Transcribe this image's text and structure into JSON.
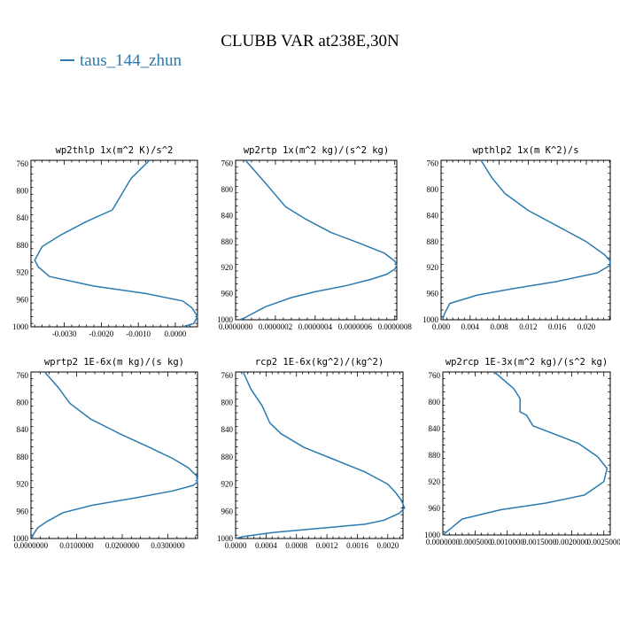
{
  "title": "CLUBB VAR at238E,30N",
  "legend": {
    "label": "taus_144_zhun",
    "color": "#2a7ab0"
  },
  "chart_data": [
    {
      "type": "line",
      "title": "wp2thlp  1x(m^2 K)/s^2",
      "xlim": [
        -0.0039,
        0.0006
      ],
      "ylim": [
        1000,
        755
      ],
      "xticks": [
        -0.003,
        -0.002,
        -0.001,
        0.0
      ],
      "xtick_labels": [
        "-0.0030",
        "-0.0020",
        "-0.0010",
        "0.0000"
      ],
      "yticks": [
        760,
        800,
        840,
        880,
        920,
        960,
        1000
      ],
      "series": [
        {
          "color": "#2a7ab0",
          "x": [
            -0.0007,
            -0.0012,
            -0.0017,
            -0.0024,
            -0.0031,
            -0.0036,
            -0.0038,
            -0.0037,
            -0.0034,
            -0.0022,
            -0.0008,
            0.0002,
            0.00045,
            0.0006,
            0.0005,
            0.0002
          ],
          "y": [
            755,
            782,
            828,
            845,
            865,
            882,
            902,
            912,
            926,
            940,
            951,
            962,
            972,
            985,
            995,
            1000
          ]
        }
      ]
    },
    {
      "type": "line",
      "title": "wp2rtp  1x(m^2 kg)/(s^2 kg)",
      "xlim": [
        0.0,
        8.1e-07
      ],
      "ylim": [
        1000,
        755
      ],
      "xticks": [
        0.0,
        2e-07,
        4e-07,
        6e-07,
        8e-07
      ],
      "xtick_labels": [
        "0.0000000",
        "0.0000002",
        "0.0000004",
        "0.0000006",
        "0.0000008"
      ],
      "yticks": [
        760,
        800,
        840,
        880,
        920,
        960,
        1000
      ],
      "series": [
        {
          "color": "#2a7ab0",
          "x": [
            5e-08,
            1.5e-07,
            2.5e-07,
            3.5e-07,
            4.8e-07,
            6.2e-07,
            7.5e-07,
            8e-07,
            8.1e-07,
            8e-07,
            7.6e-07,
            6.8e-07,
            5.5e-07,
            4e-07,
            2.8e-07,
            1.5e-07,
            7e-08,
            4e-08,
            2e-08
          ],
          "y": [
            755,
            790,
            826,
            845,
            866,
            882,
            898,
            910,
            916,
            922,
            930,
            938,
            948,
            957,
            966,
            980,
            993,
            998,
            1000
          ]
        }
      ]
    },
    {
      "type": "line",
      "title": "wpthlp2  1x(m K^2)/s",
      "xlim": [
        0.0,
        0.0233
      ],
      "ylim": [
        1000,
        755
      ],
      "xticks": [
        0.0,
        0.004,
        0.008,
        0.012,
        0.016,
        0.02
      ],
      "xtick_labels": [
        "0.000",
        "0.004",
        "0.008",
        "0.012",
        "0.016",
        "0.020"
      ],
      "yticks": [
        760,
        800,
        840,
        880,
        920,
        960,
        1000
      ],
      "series": [
        {
          "color": "#2a7ab0",
          "x": [
            0.0055,
            0.007,
            0.0088,
            0.012,
            0.016,
            0.02,
            0.0225,
            0.0233,
            0.0232,
            0.0215,
            0.016,
            0.01,
            0.005,
            0.0012,
            0.0005,
            0.0002
          ],
          "y": [
            755,
            782,
            806,
            832,
            856,
            880,
            900,
            910,
            917,
            928,
            941,
            952,
            962,
            975,
            990,
            1000
          ]
        }
      ]
    },
    {
      "type": "line",
      "title": "wprtp2  1E-6x(m kg)/(s kg)",
      "xlim": [
        0.0,
        0.0365
      ],
      "ylim": [
        1000,
        755
      ],
      "xticks": [
        0.0,
        0.01,
        0.02,
        0.03
      ],
      "xtick_labels": [
        "0.0000000",
        "0.0100000",
        "0.0200000",
        "0.0300000"
      ],
      "yticks": [
        760,
        800,
        840,
        880,
        920,
        960,
        1000
      ],
      "series": [
        {
          "color": "#2a7ab0",
          "x": [
            0.003,
            0.006,
            0.0085,
            0.013,
            0.0195,
            0.026,
            0.031,
            0.0345,
            0.0363,
            0.0365,
            0.0355,
            0.031,
            0.023,
            0.0135,
            0.007,
            0.0035,
            0.0015,
            0.0005,
            0.0002
          ],
          "y": [
            755,
            778,
            801,
            824,
            846,
            866,
            882,
            896,
            908,
            917,
            922,
            930,
            940,
            951,
            962,
            975,
            984,
            994,
            1000
          ]
        }
      ]
    },
    {
      "type": "line",
      "title": "rcp2  1E-6x(kg^2)/(kg^2)",
      "xlim": [
        0.0,
        0.0022
      ],
      "ylim": [
        1000,
        755
      ],
      "xticks": [
        0.0,
        0.0004,
        0.0008,
        0.0012,
        0.0016,
        0.002
      ],
      "xtick_labels": [
        "0.0000",
        "0.0004",
        "0.0008",
        "0.0012",
        "0.0016",
        "0.0020"
      ],
      "yticks": [
        760,
        800,
        840,
        880,
        920,
        960,
        1000
      ],
      "series": [
        {
          "color": "#2a7ab0",
          "x": [
            0.0001,
            0.0002,
            0.00035,
            0.00045,
            0.0006,
            0.0009,
            0.0013,
            0.0017,
            0.002,
            0.0021,
            0.00218,
            0.00222,
            0.00215,
            0.00195,
            0.0017,
            0.0011,
            0.0005,
            0.0001,
            0.0
          ],
          "y": [
            755,
            780,
            805,
            830,
            846,
            866,
            884,
            902,
            920,
            932,
            944,
            955,
            963,
            973,
            979,
            985,
            991,
            997,
            1000
          ]
        }
      ]
    },
    {
      "type": "line",
      "title": "wp2rcp  1E-3x(m^2 kg)/(s^2 kg)",
      "xlim": [
        0.0,
        0.0026
      ],
      "ylim": [
        1000,
        755
      ],
      "xticks": [
        0.0,
        0.0005,
        0.001,
        0.0015,
        0.002,
        0.0025
      ],
      "xtick_labels": [
        "0.0000000",
        "0.0005000",
        "0.0010000",
        "0.0015000",
        "0.0020000",
        "0.0025000"
      ],
      "yticks": [
        760,
        800,
        840,
        880,
        920,
        960,
        1000
      ],
      "series": [
        {
          "color": "#2a7ab0",
          "x": [
            0.0008,
            0.0011,
            0.0012,
            0.0012,
            0.0013,
            0.0014,
            0.0021,
            0.0024,
            0.00255,
            0.0025,
            0.0022,
            0.0016,
            0.0009,
            0.0003,
            0.0001,
            0.0
          ],
          "y": [
            755,
            780,
            795,
            815,
            820,
            836,
            862,
            882,
            900,
            920,
            940,
            952,
            962,
            976,
            992,
            1000
          ]
        }
      ]
    }
  ]
}
